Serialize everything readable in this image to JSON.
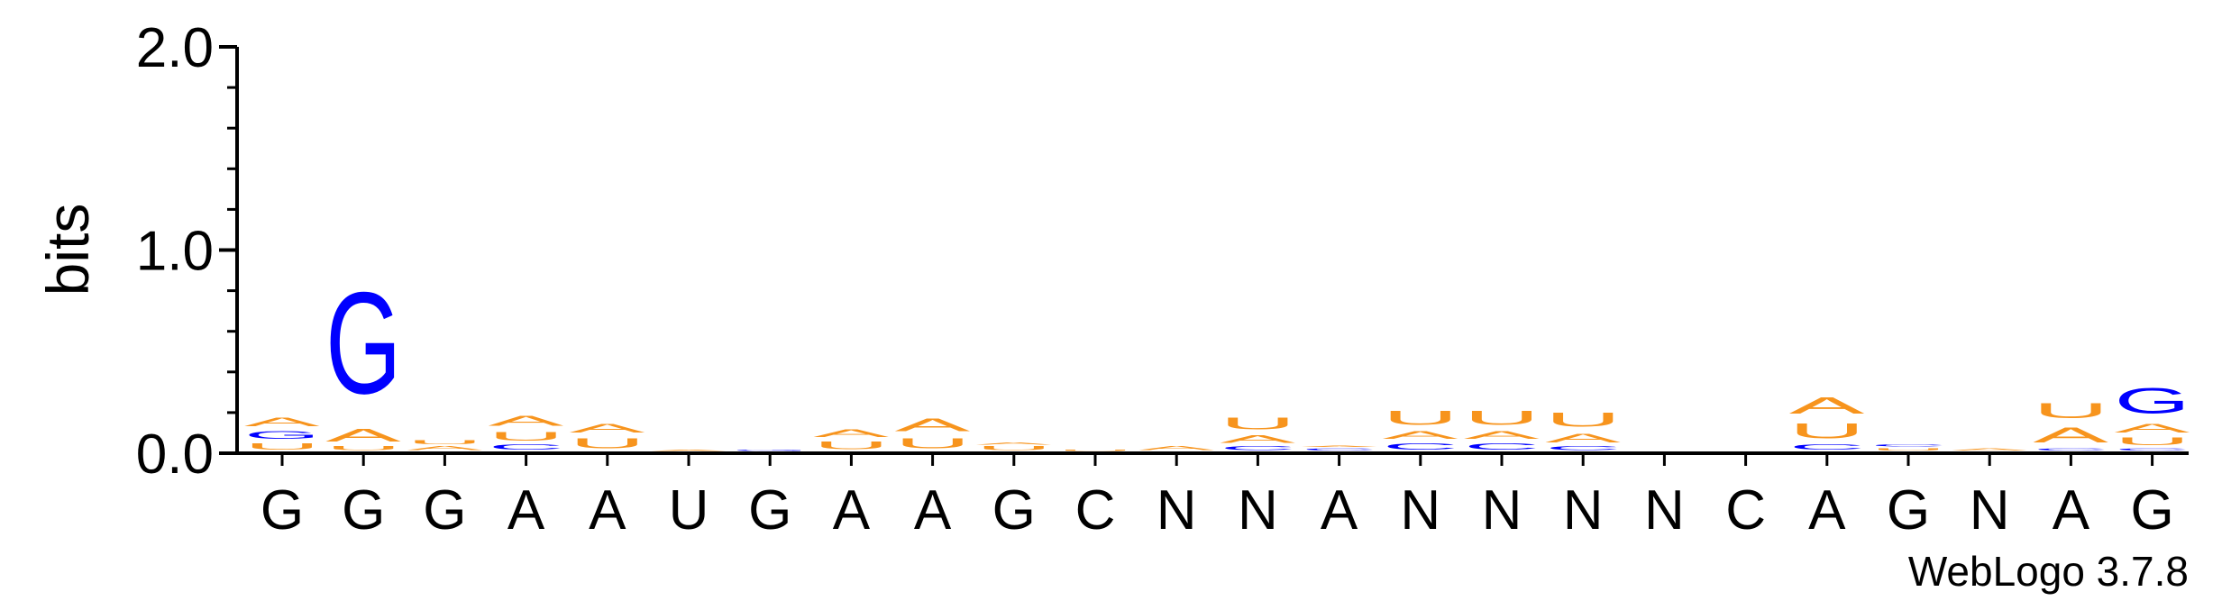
{
  "chart_data": {
    "type": "sequence-logo",
    "ylabel": "bits",
    "ylim": [
      0,
      2.0
    ],
    "yticks": [
      "0.0",
      "1.0",
      "2.0"
    ],
    "credit": "WebLogo 3.7.8",
    "colors": {
      "A": "#f7941d",
      "U": "#f7941d",
      "G": "#0000ff",
      "C": "#0000ff"
    },
    "positions": [
      {
        "label": "G",
        "stack": [
          {
            "letter": "U",
            "bits": 0.05
          },
          {
            "letter": "G",
            "bits": 0.06
          },
          {
            "letter": "A",
            "bits": 0.07
          }
        ]
      },
      {
        "label": "G",
        "stack": [
          {
            "letter": "U",
            "bits": 0.03
          },
          {
            "letter": "A",
            "bits": 0.1
          },
          {
            "letter": "G",
            "bits": 0.8
          }
        ]
      },
      {
        "label": "G",
        "stack": [
          {
            "letter": "A",
            "bits": 0.03
          },
          {
            "letter": "U",
            "bits": 0.03
          }
        ]
      },
      {
        "label": "A",
        "stack": [
          {
            "letter": "C",
            "bits": 0.04
          },
          {
            "letter": "U",
            "bits": 0.07
          },
          {
            "letter": "A",
            "bits": 0.08
          }
        ]
      },
      {
        "label": "A",
        "stack": [
          {
            "letter": "U",
            "bits": 0.08
          },
          {
            "letter": "A",
            "bits": 0.07
          }
        ]
      },
      {
        "label": "U",
        "stack": [
          {
            "letter": "A",
            "bits": 0.01
          }
        ]
      },
      {
        "label": "G",
        "stack": [
          {
            "letter": "G",
            "bits": 0.01
          }
        ]
      },
      {
        "label": "A",
        "stack": [
          {
            "letter": "U",
            "bits": 0.06
          },
          {
            "letter": "A",
            "bits": 0.06
          }
        ]
      },
      {
        "label": "A",
        "stack": [
          {
            "letter": "U",
            "bits": 0.08
          },
          {
            "letter": "A",
            "bits": 0.1
          }
        ]
      },
      {
        "label": "G",
        "stack": [
          {
            "letter": "U",
            "bits": 0.03
          },
          {
            "letter": "A",
            "bits": 0.02
          }
        ]
      },
      {
        "label": "C",
        "stack": [
          {
            "letter": "U",
            "bits": 0.01
          }
        ]
      },
      {
        "label": "N",
        "stack": [
          {
            "letter": "A",
            "bits": 0.03
          }
        ]
      },
      {
        "label": "N",
        "stack": [
          {
            "letter": "C",
            "bits": 0.03
          },
          {
            "letter": "A",
            "bits": 0.06
          },
          {
            "letter": "U",
            "bits": 0.09
          }
        ]
      },
      {
        "label": "A",
        "stack": [
          {
            "letter": "C",
            "bits": 0.02
          },
          {
            "letter": "A",
            "bits": 0.01
          }
        ]
      },
      {
        "label": "N",
        "stack": [
          {
            "letter": "C",
            "bits": 0.05
          },
          {
            "letter": "A",
            "bits": 0.06
          },
          {
            "letter": "U",
            "bits": 0.11
          }
        ]
      },
      {
        "label": "N",
        "stack": [
          {
            "letter": "C",
            "bits": 0.05
          },
          {
            "letter": "A",
            "bits": 0.06
          },
          {
            "letter": "U",
            "bits": 0.11
          }
        ]
      },
      {
        "label": "N",
        "stack": [
          {
            "letter": "C",
            "bits": 0.03
          },
          {
            "letter": "A",
            "bits": 0.07
          },
          {
            "letter": "U",
            "bits": 0.11
          }
        ]
      },
      {
        "label": "N",
        "stack": []
      },
      {
        "label": "C",
        "stack": []
      },
      {
        "label": "A",
        "stack": [
          {
            "letter": "C",
            "bits": 0.04
          },
          {
            "letter": "U",
            "bits": 0.12
          },
          {
            "letter": "A",
            "bits": 0.13
          }
        ]
      },
      {
        "label": "G",
        "stack": [
          {
            "letter": "U",
            "bits": 0.02
          },
          {
            "letter": "C",
            "bits": 0.02
          }
        ]
      },
      {
        "label": "N",
        "stack": [
          {
            "letter": "A",
            "bits": 0.02
          }
        ]
      },
      {
        "label": "A",
        "stack": [
          {
            "letter": "C",
            "bits": 0.02
          },
          {
            "letter": "A",
            "bits": 0.12
          },
          {
            "letter": "U",
            "bits": 0.12
          }
        ]
      },
      {
        "label": "G",
        "stack": [
          {
            "letter": "C",
            "bits": 0.02
          },
          {
            "letter": "U",
            "bits": 0.06
          },
          {
            "letter": "A",
            "bits": 0.07
          },
          {
            "letter": "G",
            "bits": 0.2
          }
        ]
      }
    ]
  }
}
